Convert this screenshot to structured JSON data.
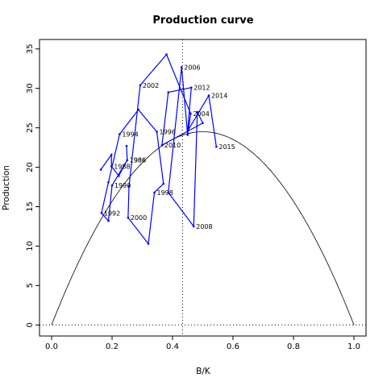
{
  "chart_data": {
    "type": "line",
    "title": "Production curve",
    "xlabel": "B/K",
    "ylabel": "Production",
    "xlim": [
      -0.04,
      1.04
    ],
    "ylim": [
      -1.4,
      36.2
    ],
    "x_ticks": [
      "0.0",
      "0.2",
      "0.4",
      "0.6",
      "0.8",
      "1.0"
    ],
    "y_ticks": [
      "0",
      "5",
      "10",
      "15",
      "20",
      "25",
      "30",
      "35"
    ],
    "grid": false,
    "colors": {
      "series": "#0000ff",
      "curve": "#000000"
    },
    "production_curve": {
      "type": "parabola",
      "r_over_4": 24.5,
      "x_range": [
        0,
        1
      ]
    },
    "reference_lines": {
      "vertical_x": 0.433,
      "horizontal_y": 0
    },
    "series": [
      {
        "points": [
          {
            "x": 0.163,
            "y": 19.7
          },
          {
            "x": 0.198,
            "y": 21.6
          },
          {
            "x": 0.198,
            "y": 20.1,
            "label": "1988"
          },
          {
            "x": 0.222,
            "y": 18.9
          },
          {
            "x": 0.25,
            "y": 20.9,
            "label": "1986"
          },
          {
            "x": 0.248,
            "y": 22.7
          },
          {
            "x": 0.25,
            "y": 20.9,
            "label": "1986"
          },
          {
            "x": 0.2,
            "y": 17.7,
            "label": "1990"
          },
          {
            "x": 0.188,
            "y": 13.2
          },
          {
            "x": 0.165,
            "y": 14.2,
            "label": "1992"
          },
          {
            "x": 0.188,
            "y": 18.1
          },
          {
            "x": 0.225,
            "y": 24.2,
            "label": "1994"
          },
          {
            "x": 0.287,
            "y": 27.3
          },
          {
            "x": 0.348,
            "y": 24.5,
            "label": "1996"
          },
          {
            "x": 0.37,
            "y": 17.9
          },
          {
            "x": 0.34,
            "y": 16.8,
            "label": "1998"
          },
          {
            "x": 0.32,
            "y": 10.3
          },
          {
            "x": 0.253,
            "y": 13.6,
            "label": "2000"
          },
          {
            "x": 0.256,
            "y": 17.6
          },
          {
            "x": 0.293,
            "y": 30.4,
            "label": "2002"
          },
          {
            "x": 0.38,
            "y": 34.3
          },
          {
            "x": 0.46,
            "y": 26.8,
            "label": "2004"
          },
          {
            "x": 0.45,
            "y": 24.1
          },
          {
            "x": 0.43,
            "y": 32.7,
            "label": "2006"
          },
          {
            "x": 0.386,
            "y": 16.8
          },
          {
            "x": 0.47,
            "y": 12.5,
            "label": "2008"
          },
          {
            "x": 0.482,
            "y": 27.0
          },
          {
            "x": 0.5,
            "y": 25.6
          },
          {
            "x": 0.365,
            "y": 22.8,
            "label": "2010"
          },
          {
            "x": 0.386,
            "y": 29.5
          },
          {
            "x": 0.462,
            "y": 30.1,
            "label": "2012"
          },
          {
            "x": 0.45,
            "y": 24.6
          },
          {
            "x": 0.52,
            "y": 29.1,
            "label": "2014"
          },
          {
            "x": 0.545,
            "y": 22.6,
            "label": "2015"
          }
        ]
      }
    ]
  }
}
